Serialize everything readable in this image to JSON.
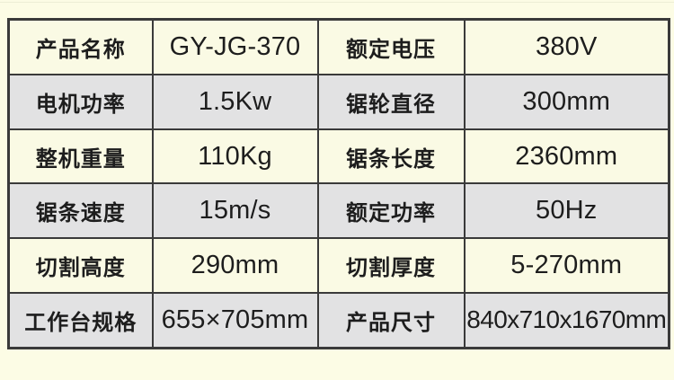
{
  "colors": {
    "page_background": "#fcfce5",
    "row_cream": "#fafae4",
    "row_gray": "#e2e2e3",
    "border": "#3a3a3a",
    "text": "#1d1d1d"
  },
  "spec_table": {
    "rows": [
      {
        "label_left": "产品名称",
        "value_left": "GY-JG-370",
        "label_right": "额定电压",
        "value_right": "380V"
      },
      {
        "label_left": "电机功率",
        "value_left": "1.5Kw",
        "label_right": "锯轮直径",
        "value_right": "300mm"
      },
      {
        "label_left": "整机重量",
        "value_left": "110Kg",
        "label_right": "锯条长度",
        "value_right": "2360mm"
      },
      {
        "label_left": "锯条速度",
        "value_left": "15m/s",
        "label_right": "额定功率",
        "value_right": "50Hz"
      },
      {
        "label_left": "切割高度",
        "value_left": "290mm",
        "label_right": "切割厚度",
        "value_right": "5-270mm"
      },
      {
        "label_left": "工作台规格",
        "value_left": "655×705mm",
        "label_right": "产品尺寸",
        "value_right": "840x710x1670mm"
      }
    ]
  }
}
